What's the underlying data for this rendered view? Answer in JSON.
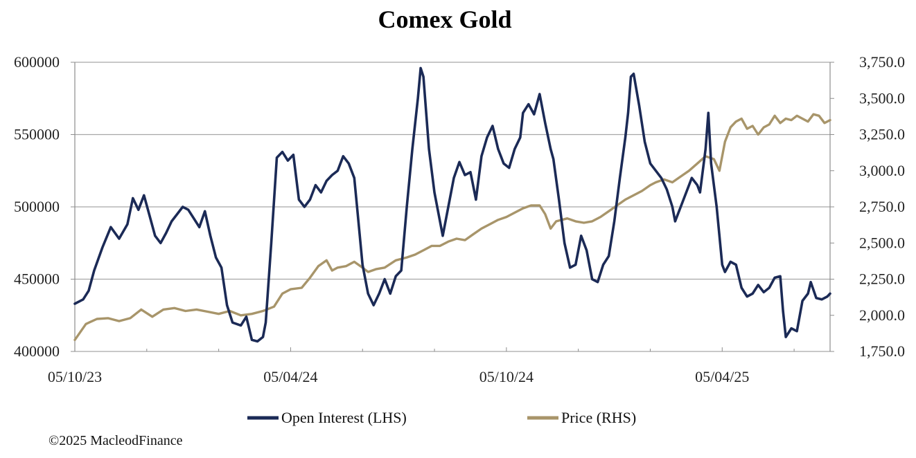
{
  "title": "Comex Gold",
  "credit": "©2025 MacleodFinance",
  "colors": {
    "oi": "#1b2a56",
    "price": "#a8956a",
    "grid": "#a6a6a6",
    "axis": "#8c8c8c"
  },
  "chart_data": {
    "type": "line",
    "title": "Comex Gold",
    "x_ticks": [
      "05/10/23",
      "05/04/24",
      "05/10/24",
      "05/04/25"
    ],
    "x_tick_positions": [
      0,
      156,
      312,
      468
    ],
    "x_range": [
      0,
      546
    ],
    "y_left": {
      "ticks": [
        "400000",
        "450000",
        "500000",
        "550000",
        "600000"
      ],
      "range": [
        400000,
        600000
      ]
    },
    "y_right": {
      "ticks": [
        "1,750.0",
        "2,000.0",
        "2,250.0",
        "2,500.0",
        "2,750.0",
        "3,000.0",
        "3,250.0",
        "3,500.0",
        "3,750.0"
      ],
      "range": [
        1750,
        3750
      ]
    },
    "legend_position": "bottom",
    "grid": "horizontal",
    "series": [
      {
        "name": "Open Interest (LHS)",
        "axis": "left",
        "points": [
          [
            0,
            433000
          ],
          [
            6,
            436000
          ],
          [
            10,
            442000
          ],
          [
            14,
            456000
          ],
          [
            20,
            472000
          ],
          [
            26,
            486000
          ],
          [
            32,
            478000
          ],
          [
            38,
            488000
          ],
          [
            42,
            506000
          ],
          [
            46,
            498000
          ],
          [
            50,
            508000
          ],
          [
            54,
            494000
          ],
          [
            58,
            480000
          ],
          [
            62,
            475000
          ],
          [
            66,
            482000
          ],
          [
            70,
            490000
          ],
          [
            74,
            495000
          ],
          [
            78,
            500000
          ],
          [
            82,
            498000
          ],
          [
            86,
            492000
          ],
          [
            90,
            486000
          ],
          [
            94,
            497000
          ],
          [
            98,
            480000
          ],
          [
            102,
            465000
          ],
          [
            106,
            458000
          ],
          [
            110,
            432000
          ],
          [
            114,
            420000
          ],
          [
            120,
            418000
          ],
          [
            124,
            424000
          ],
          [
            128,
            408000
          ],
          [
            132,
            407000
          ],
          [
            136,
            410000
          ],
          [
            138,
            420000
          ],
          [
            142,
            475000
          ],
          [
            146,
            534000
          ],
          [
            150,
            538000
          ],
          [
            154,
            532000
          ],
          [
            158,
            536000
          ],
          [
            162,
            505000
          ],
          [
            166,
            500000
          ],
          [
            170,
            505000
          ],
          [
            174,
            515000
          ],
          [
            178,
            510000
          ],
          [
            182,
            518000
          ],
          [
            186,
            522000
          ],
          [
            190,
            525000
          ],
          [
            194,
            535000
          ],
          [
            198,
            530000
          ],
          [
            202,
            520000
          ],
          [
            204,
            500000
          ],
          [
            208,
            460000
          ],
          [
            212,
            440000
          ],
          [
            216,
            432000
          ],
          [
            220,
            440000
          ],
          [
            224,
            450000
          ],
          [
            228,
            440000
          ],
          [
            232,
            452000
          ],
          [
            236,
            456000
          ],
          [
            240,
            500000
          ],
          [
            244,
            540000
          ],
          [
            248,
            575000
          ],
          [
            250,
            596000
          ],
          [
            252,
            590000
          ],
          [
            256,
            540000
          ],
          [
            260,
            510000
          ],
          [
            264,
            490000
          ],
          [
            266,
            480000
          ],
          [
            270,
            500000
          ],
          [
            274,
            520000
          ],
          [
            278,
            531000
          ],
          [
            282,
            522000
          ],
          [
            286,
            524000
          ],
          [
            290,
            505000
          ],
          [
            294,
            535000
          ],
          [
            298,
            548000
          ],
          [
            302,
            556000
          ],
          [
            306,
            540000
          ],
          [
            310,
            530000
          ],
          [
            314,
            527000
          ],
          [
            318,
            540000
          ],
          [
            322,
            548000
          ],
          [
            324,
            565000
          ],
          [
            328,
            571000
          ],
          [
            332,
            564000
          ],
          [
            336,
            578000
          ],
          [
            340,
            558000
          ],
          [
            344,
            540000
          ],
          [
            346,
            533000
          ],
          [
            350,
            505000
          ],
          [
            354,
            475000
          ],
          [
            358,
            458000
          ],
          [
            362,
            460000
          ],
          [
            364,
            470000
          ],
          [
            366,
            480000
          ],
          [
            370,
            470000
          ],
          [
            374,
            450000
          ],
          [
            378,
            448000
          ],
          [
            382,
            460000
          ],
          [
            386,
            466000
          ],
          [
            390,
            490000
          ],
          [
            394,
            520000
          ],
          [
            398,
            548000
          ],
          [
            400,
            565000
          ],
          [
            402,
            590000
          ],
          [
            404,
            592000
          ],
          [
            408,
            570000
          ],
          [
            412,
            545000
          ],
          [
            416,
            530000
          ],
          [
            420,
            525000
          ],
          [
            424,
            520000
          ],
          [
            428,
            512000
          ],
          [
            432,
            500000
          ],
          [
            434,
            490000
          ],
          [
            438,
            500000
          ],
          [
            442,
            510000
          ],
          [
            446,
            520000
          ],
          [
            450,
            515000
          ],
          [
            452,
            510000
          ],
          [
            456,
            540000
          ],
          [
            458,
            565000
          ],
          [
            460,
            530000
          ],
          [
            464,
            500000
          ],
          [
            466,
            480000
          ],
          [
            468,
            460000
          ],
          [
            470,
            455000
          ],
          [
            474,
            462000
          ],
          [
            478,
            460000
          ],
          [
            482,
            444000
          ],
          [
            486,
            438000
          ],
          [
            490,
            440000
          ],
          [
            494,
            446000
          ],
          [
            498,
            441000
          ],
          [
            502,
            444000
          ],
          [
            506,
            451000
          ],
          [
            510,
            452000
          ],
          [
            512,
            428000
          ],
          [
            514,
            410000
          ],
          [
            518,
            416000
          ],
          [
            522,
            414000
          ],
          [
            526,
            435000
          ],
          [
            530,
            440000
          ],
          [
            532,
            448000
          ],
          [
            536,
            437000
          ],
          [
            540,
            436000
          ],
          [
            544,
            438000
          ],
          [
            546,
            440000
          ]
        ]
      },
      {
        "name": "Price (RHS)",
        "axis": "right",
        "points": [
          [
            0,
            1830
          ],
          [
            8,
            1940
          ],
          [
            16,
            1975
          ],
          [
            24,
            1980
          ],
          [
            32,
            1960
          ],
          [
            40,
            1980
          ],
          [
            48,
            2040
          ],
          [
            56,
            1990
          ],
          [
            64,
            2040
          ],
          [
            72,
            2050
          ],
          [
            80,
            2030
          ],
          [
            88,
            2040
          ],
          [
            96,
            2025
          ],
          [
            104,
            2010
          ],
          [
            112,
            2030
          ],
          [
            120,
            2000
          ],
          [
            128,
            2010
          ],
          [
            136,
            2030
          ],
          [
            144,
            2060
          ],
          [
            150,
            2150
          ],
          [
            156,
            2180
          ],
          [
            164,
            2190
          ],
          [
            170,
            2260
          ],
          [
            176,
            2340
          ],
          [
            182,
            2380
          ],
          [
            186,
            2310
          ],
          [
            190,
            2330
          ],
          [
            196,
            2340
          ],
          [
            202,
            2370
          ],
          [
            208,
            2330
          ],
          [
            212,
            2300
          ],
          [
            218,
            2320
          ],
          [
            224,
            2330
          ],
          [
            232,
            2380
          ],
          [
            240,
            2400
          ],
          [
            246,
            2420
          ],
          [
            252,
            2450
          ],
          [
            258,
            2480
          ],
          [
            264,
            2480
          ],
          [
            270,
            2510
          ],
          [
            276,
            2530
          ],
          [
            282,
            2520
          ],
          [
            288,
            2560
          ],
          [
            294,
            2600
          ],
          [
            300,
            2630
          ],
          [
            306,
            2660
          ],
          [
            312,
            2680
          ],
          [
            318,
            2710
          ],
          [
            324,
            2740
          ],
          [
            330,
            2760
          ],
          [
            336,
            2760
          ],
          [
            340,
            2700
          ],
          [
            344,
            2600
          ],
          [
            348,
            2650
          ],
          [
            352,
            2660
          ],
          [
            356,
            2670
          ],
          [
            362,
            2650
          ],
          [
            368,
            2640
          ],
          [
            374,
            2650
          ],
          [
            380,
            2680
          ],
          [
            386,
            2720
          ],
          [
            392,
            2760
          ],
          [
            398,
            2800
          ],
          [
            404,
            2830
          ],
          [
            410,
            2860
          ],
          [
            416,
            2900
          ],
          [
            420,
            2920
          ],
          [
            426,
            2940
          ],
          [
            432,
            2920
          ],
          [
            438,
            2960
          ],
          [
            444,
            3000
          ],
          [
            450,
            3050
          ],
          [
            456,
            3100
          ],
          [
            462,
            3080
          ],
          [
            466,
            3000
          ],
          [
            470,
            3200
          ],
          [
            474,
            3300
          ],
          [
            478,
            3340
          ],
          [
            482,
            3360
          ],
          [
            486,
            3290
          ],
          [
            490,
            3310
          ],
          [
            494,
            3250
          ],
          [
            498,
            3300
          ],
          [
            502,
            3320
          ],
          [
            506,
            3380
          ],
          [
            510,
            3330
          ],
          [
            514,
            3360
          ],
          [
            518,
            3350
          ],
          [
            522,
            3380
          ],
          [
            526,
            3360
          ],
          [
            530,
            3340
          ],
          [
            534,
            3390
          ],
          [
            538,
            3380
          ],
          [
            542,
            3330
          ],
          [
            546,
            3350
          ]
        ]
      }
    ]
  }
}
